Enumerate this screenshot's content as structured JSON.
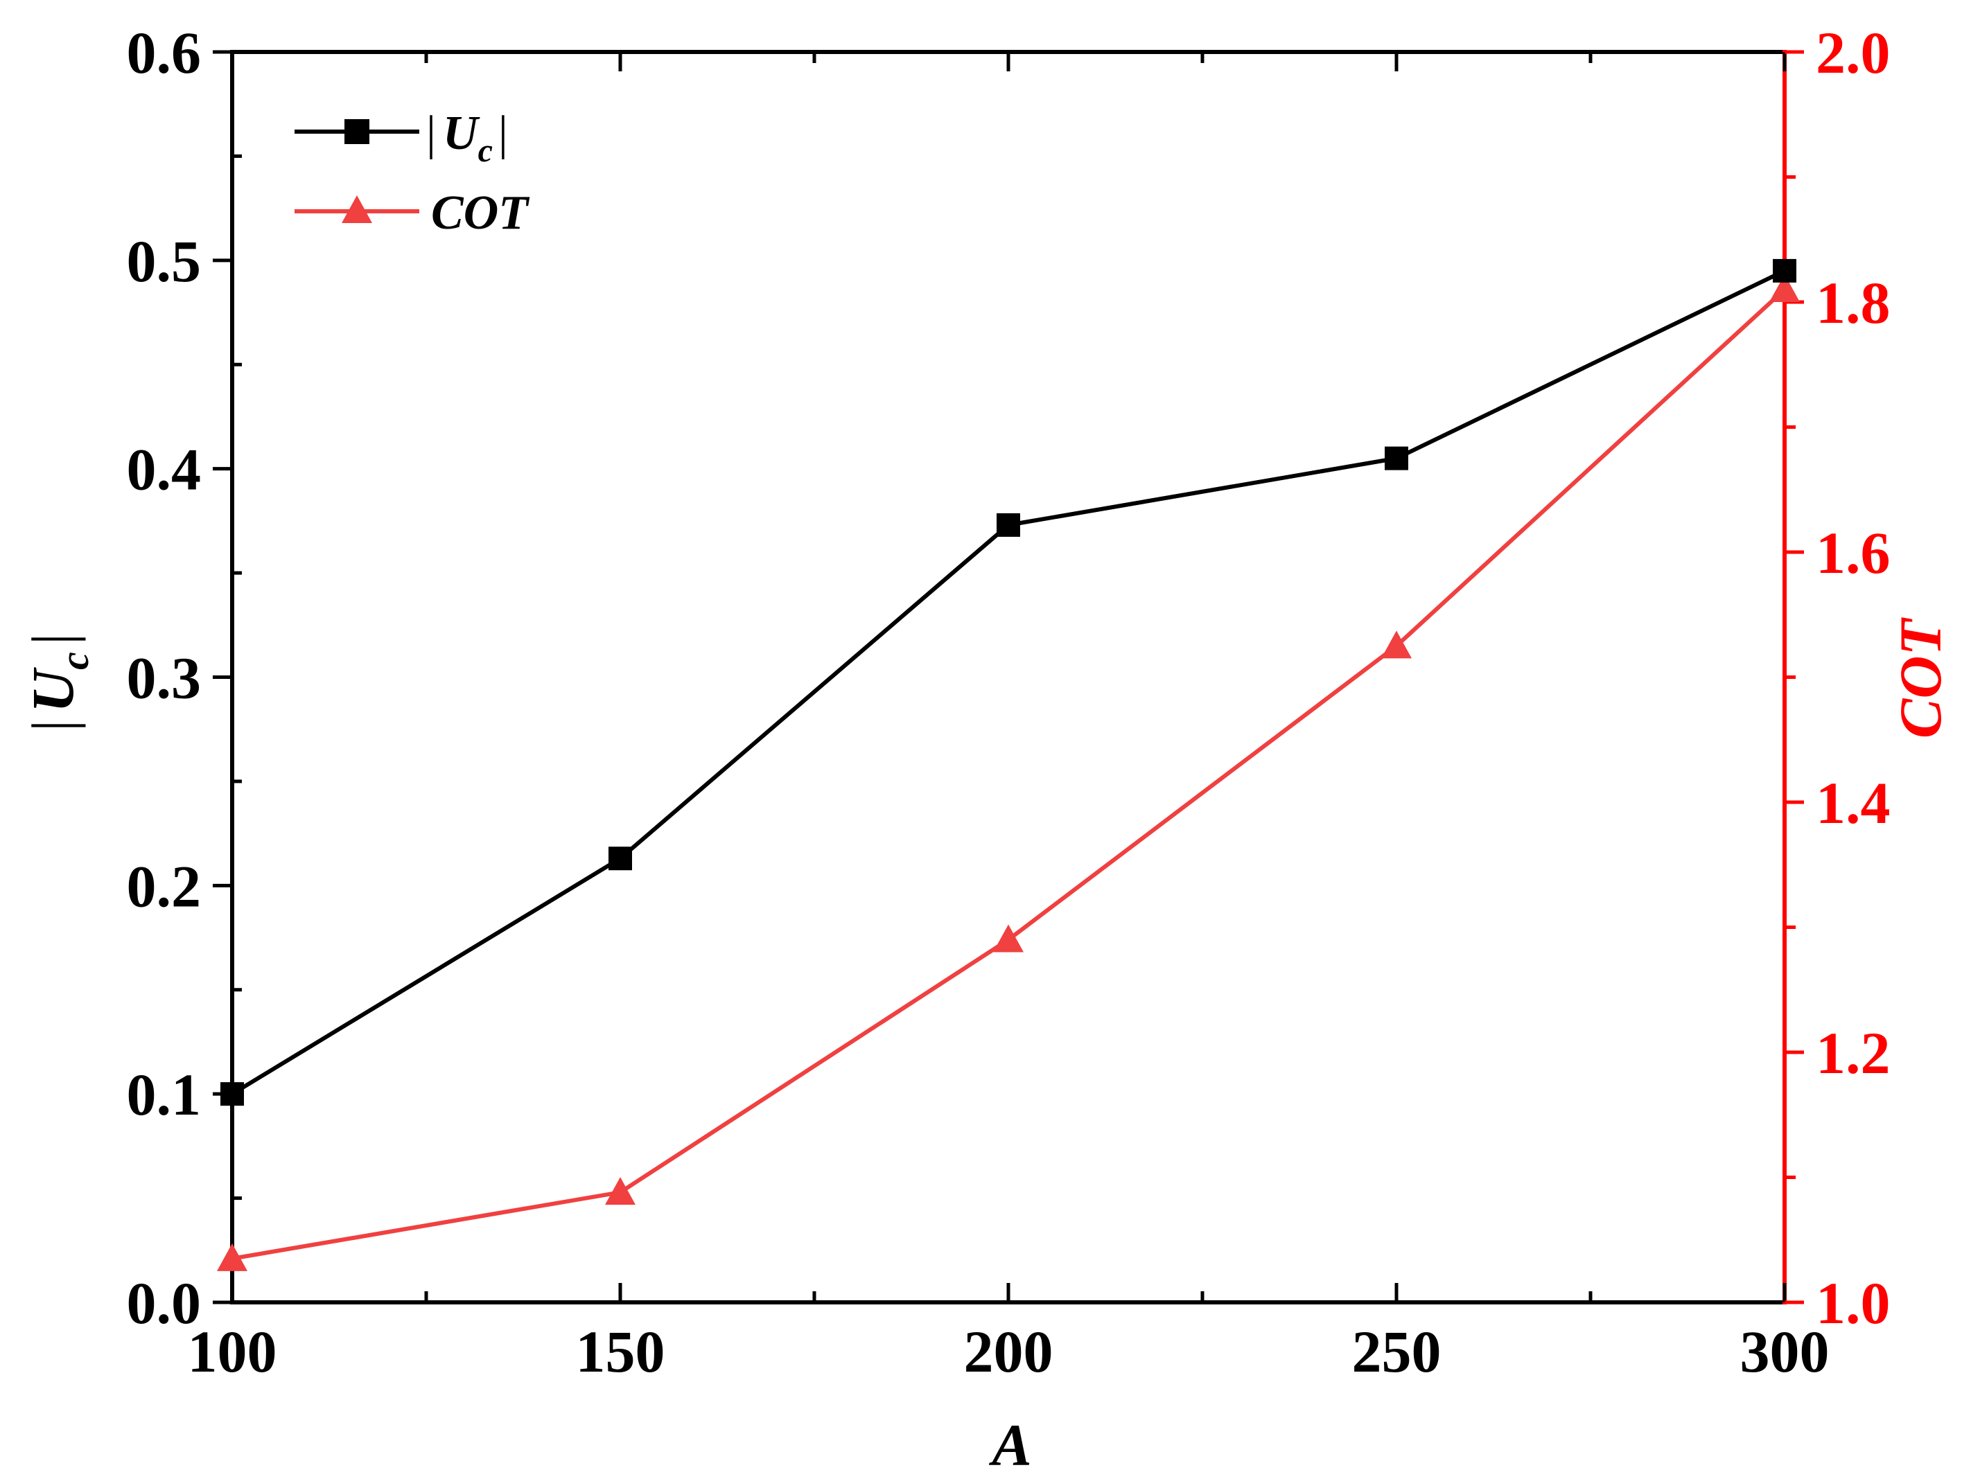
{
  "chart_data": {
    "type": "line",
    "x": [
      100,
      150,
      200,
      250,
      300
    ],
    "xlabel": "A",
    "xlim": [
      100,
      300
    ],
    "xticks": [
      "100",
      "150",
      "200",
      "250",
      "300"
    ],
    "left_axis": {
      "label_bar_left": "|",
      "label_main": "U",
      "label_sub": "c",
      "label_bar_right": "|",
      "ylim": [
        0.0,
        0.6
      ],
      "ticks": [
        "0.0",
        "0.1",
        "0.2",
        "0.3",
        "0.4",
        "0.5",
        "0.6"
      ],
      "color": "#000000"
    },
    "right_axis": {
      "label": "COT",
      "ylim": [
        1.0,
        2.0
      ],
      "ticks": [
        "1.0",
        "1.2",
        "1.4",
        "1.6",
        "1.8",
        "2.0"
      ],
      "color": "#ff0000"
    },
    "series": [
      {
        "name": "|Uc|",
        "legend_bar_left": "|",
        "legend_main": "U",
        "legend_sub": "c",
        "legend_bar_right": "|",
        "axis": "left",
        "marker": "square",
        "color": "#000000",
        "values": [
          0.1,
          0.213,
          0.373,
          0.405,
          0.495
        ]
      },
      {
        "name": "COT",
        "legend_label": "COT",
        "axis": "right",
        "marker": "triangle",
        "color": "#f04040",
        "values": [
          1.035,
          1.088,
          1.29,
          1.525,
          1.81
        ]
      }
    ],
    "legend_position": "top-left",
    "grid": false
  }
}
